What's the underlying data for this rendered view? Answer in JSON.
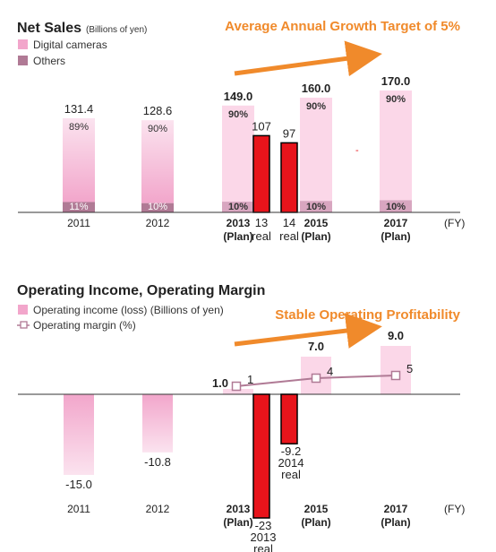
{
  "colors": {
    "digital": "#f2a6cb",
    "digital_gradient_top": "#fbe3ef",
    "others": "#b07a95",
    "plan_light": "#fbd7e8",
    "plan_light_others": "#d8a6c0",
    "orange": "#f08a2b",
    "red_overlay": "#e8141b",
    "margin_line": "#b07a95",
    "axis": "#333333"
  },
  "chart_data": [
    {
      "type": "bar",
      "title": "Net Sales",
      "subtitle": "(Billions of yen)",
      "trend_label": "Average Annual Growth Target of 5%",
      "legend": [
        "Digital cameras",
        "Others"
      ],
      "fy_label": "(FY)",
      "categories": [
        {
          "year": "2011",
          "plan": ""
        },
        {
          "year": "2012",
          "plan": ""
        },
        {
          "year": "2013",
          "plan": "(Plan)"
        },
        {
          "year": "2015",
          "plan": "(Plan)"
        },
        {
          "year": "2017",
          "plan": "(Plan)"
        }
      ],
      "totals": [
        131.4,
        128.6,
        149.0,
        160.0,
        170.0
      ],
      "total_labels": [
        "131.4",
        "128.6",
        "149.0",
        "160.0",
        "170.0"
      ],
      "digital_pct": [
        "89%",
        "90%",
        "90%",
        "90%",
        "90%"
      ],
      "others_pct": [
        "11%",
        "10%",
        "10%",
        "10%",
        "10%"
      ],
      "others_share": [
        0.11,
        0.1,
        0.1,
        0.1,
        0.1
      ],
      "overlay_series": [
        {
          "value": 107,
          "label": "107",
          "tick": "13",
          "tag": "real"
        },
        {
          "value": 97,
          "label": "97",
          "tick": "14",
          "tag": "real"
        }
      ],
      "ylim": [
        0,
        200
      ]
    },
    {
      "type": "bar+line",
      "title": "Operating Income, Operating Margin",
      "trend_label": "Stable Operating Profitability",
      "legend": [
        "Operating income (loss) (Billions of yen)",
        "Operating margin (%)"
      ],
      "fy_label": "(FY)",
      "categories": [
        {
          "year": "2011",
          "plan": ""
        },
        {
          "year": "2012",
          "plan": ""
        },
        {
          "year": "2013",
          "plan": "(Plan)"
        },
        {
          "year": "2015",
          "plan": "(Plan)"
        },
        {
          "year": "2017",
          "plan": "(Plan)"
        }
      ],
      "operating_income": [
        -15.0,
        -10.8,
        1.0,
        7.0,
        9.0
      ],
      "operating_income_labels": [
        "-15.0",
        "-10.8",
        "1.0",
        "7.0",
        "9.0"
      ],
      "operating_margin": [
        1,
        4,
        5
      ],
      "operating_margin_labels": [
        "1",
        "4",
        "5"
      ],
      "overlay_series": [
        {
          "value": -23,
          "lines": [
            "-23",
            "2013",
            "real"
          ]
        },
        {
          "value": -9.2,
          "lines": [
            "-9.2",
            "2014",
            "real"
          ]
        }
      ],
      "ylim": [
        -30,
        12
      ]
    }
  ]
}
